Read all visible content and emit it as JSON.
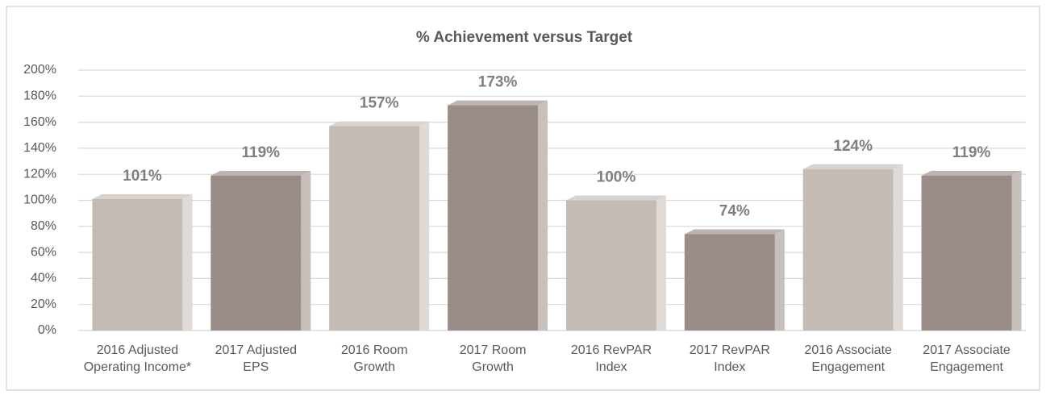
{
  "chart_data": {
    "type": "bar3d",
    "title": "% Achievement versus Target",
    "categories": [
      [
        "2016 Adjusted",
        "Operating Income*"
      ],
      [
        "2017 Adjusted",
        "EPS"
      ],
      [
        "2016 Room",
        "Growth"
      ],
      [
        "2017 Room",
        "Growth"
      ],
      [
        "2016 RevPAR",
        "Index"
      ],
      [
        "2017 RevPAR",
        "Index"
      ],
      [
        "2016 Associate",
        "Engagement"
      ],
      [
        "2017 Associate",
        "Engagement"
      ]
    ],
    "values": [
      101,
      119,
      157,
      173,
      100,
      74,
      124,
      119
    ],
    "value_labels": [
      "101%",
      "119%",
      "157%",
      "173%",
      "100%",
      "74%",
      "124%",
      "119%"
    ],
    "colors": [
      "#c4bbb5",
      "#9a8c86",
      "#c4bbb5",
      "#9a8c86",
      "#c4bbb5",
      "#9a8c86",
      "#c4bbb5",
      "#9a8c86"
    ],
    "ylim": [
      0,
      200
    ],
    "yticks": [
      {
        "value": 0,
        "label": "0%"
      },
      {
        "value": 20,
        "label": "20%"
      },
      {
        "value": 40,
        "label": "40%"
      },
      {
        "value": 60,
        "label": "60%"
      },
      {
        "value": 80,
        "label": "80%"
      },
      {
        "value": 100,
        "label": "100%"
      },
      {
        "value": 120,
        "label": "120%"
      },
      {
        "value": 140,
        "label": "140%"
      },
      {
        "value": 160,
        "label": "160%"
      },
      {
        "value": 180,
        "label": "180%"
      },
      {
        "value": 200,
        "label": "200%"
      }
    ],
    "grid": true
  }
}
